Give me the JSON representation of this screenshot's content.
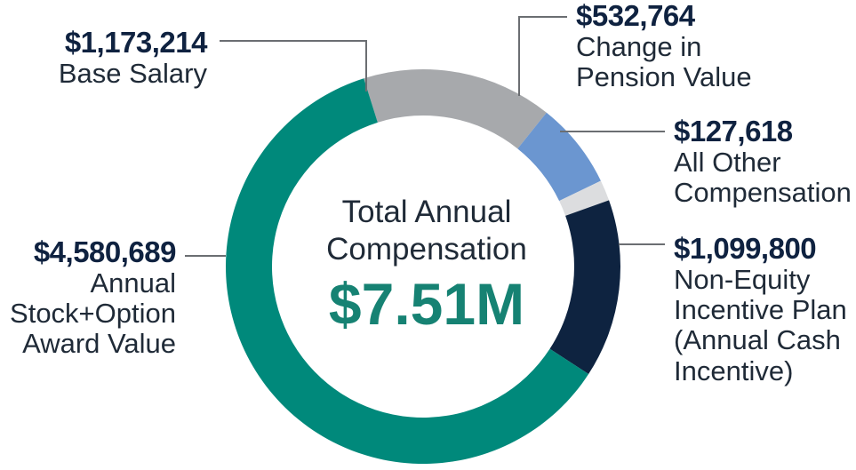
{
  "chart_data": {
    "type": "pie",
    "center_title": "Total Annual\nCompensation",
    "center_value": "$7.51M",
    "slices": [
      {
        "key": "salary",
        "amount_label": "$1,173,214",
        "label": "Base Salary",
        "value": 1173214,
        "color": "#a7a9ac"
      },
      {
        "key": "pension",
        "amount_label": "$532,764",
        "label": "Change in\nPension Value",
        "value": 532764,
        "color": "#6b96d0"
      },
      {
        "key": "other",
        "amount_label": "$127,618",
        "label": "All Other\nCompensation",
        "value": 127618,
        "color": "#dcdddf"
      },
      {
        "key": "nonequity",
        "amount_label": "$1,099,800",
        "label": "Non-Equity\nIncentive Plan\n(Annual Cash\nIncentive)",
        "value": 1099800,
        "color": "#0e2340"
      },
      {
        "key": "stock",
        "amount_label": "$4,580,689",
        "label": "Annual\nStock+Option\nAward Value",
        "value": 4580689,
        "color": "#00897b"
      }
    ]
  }
}
